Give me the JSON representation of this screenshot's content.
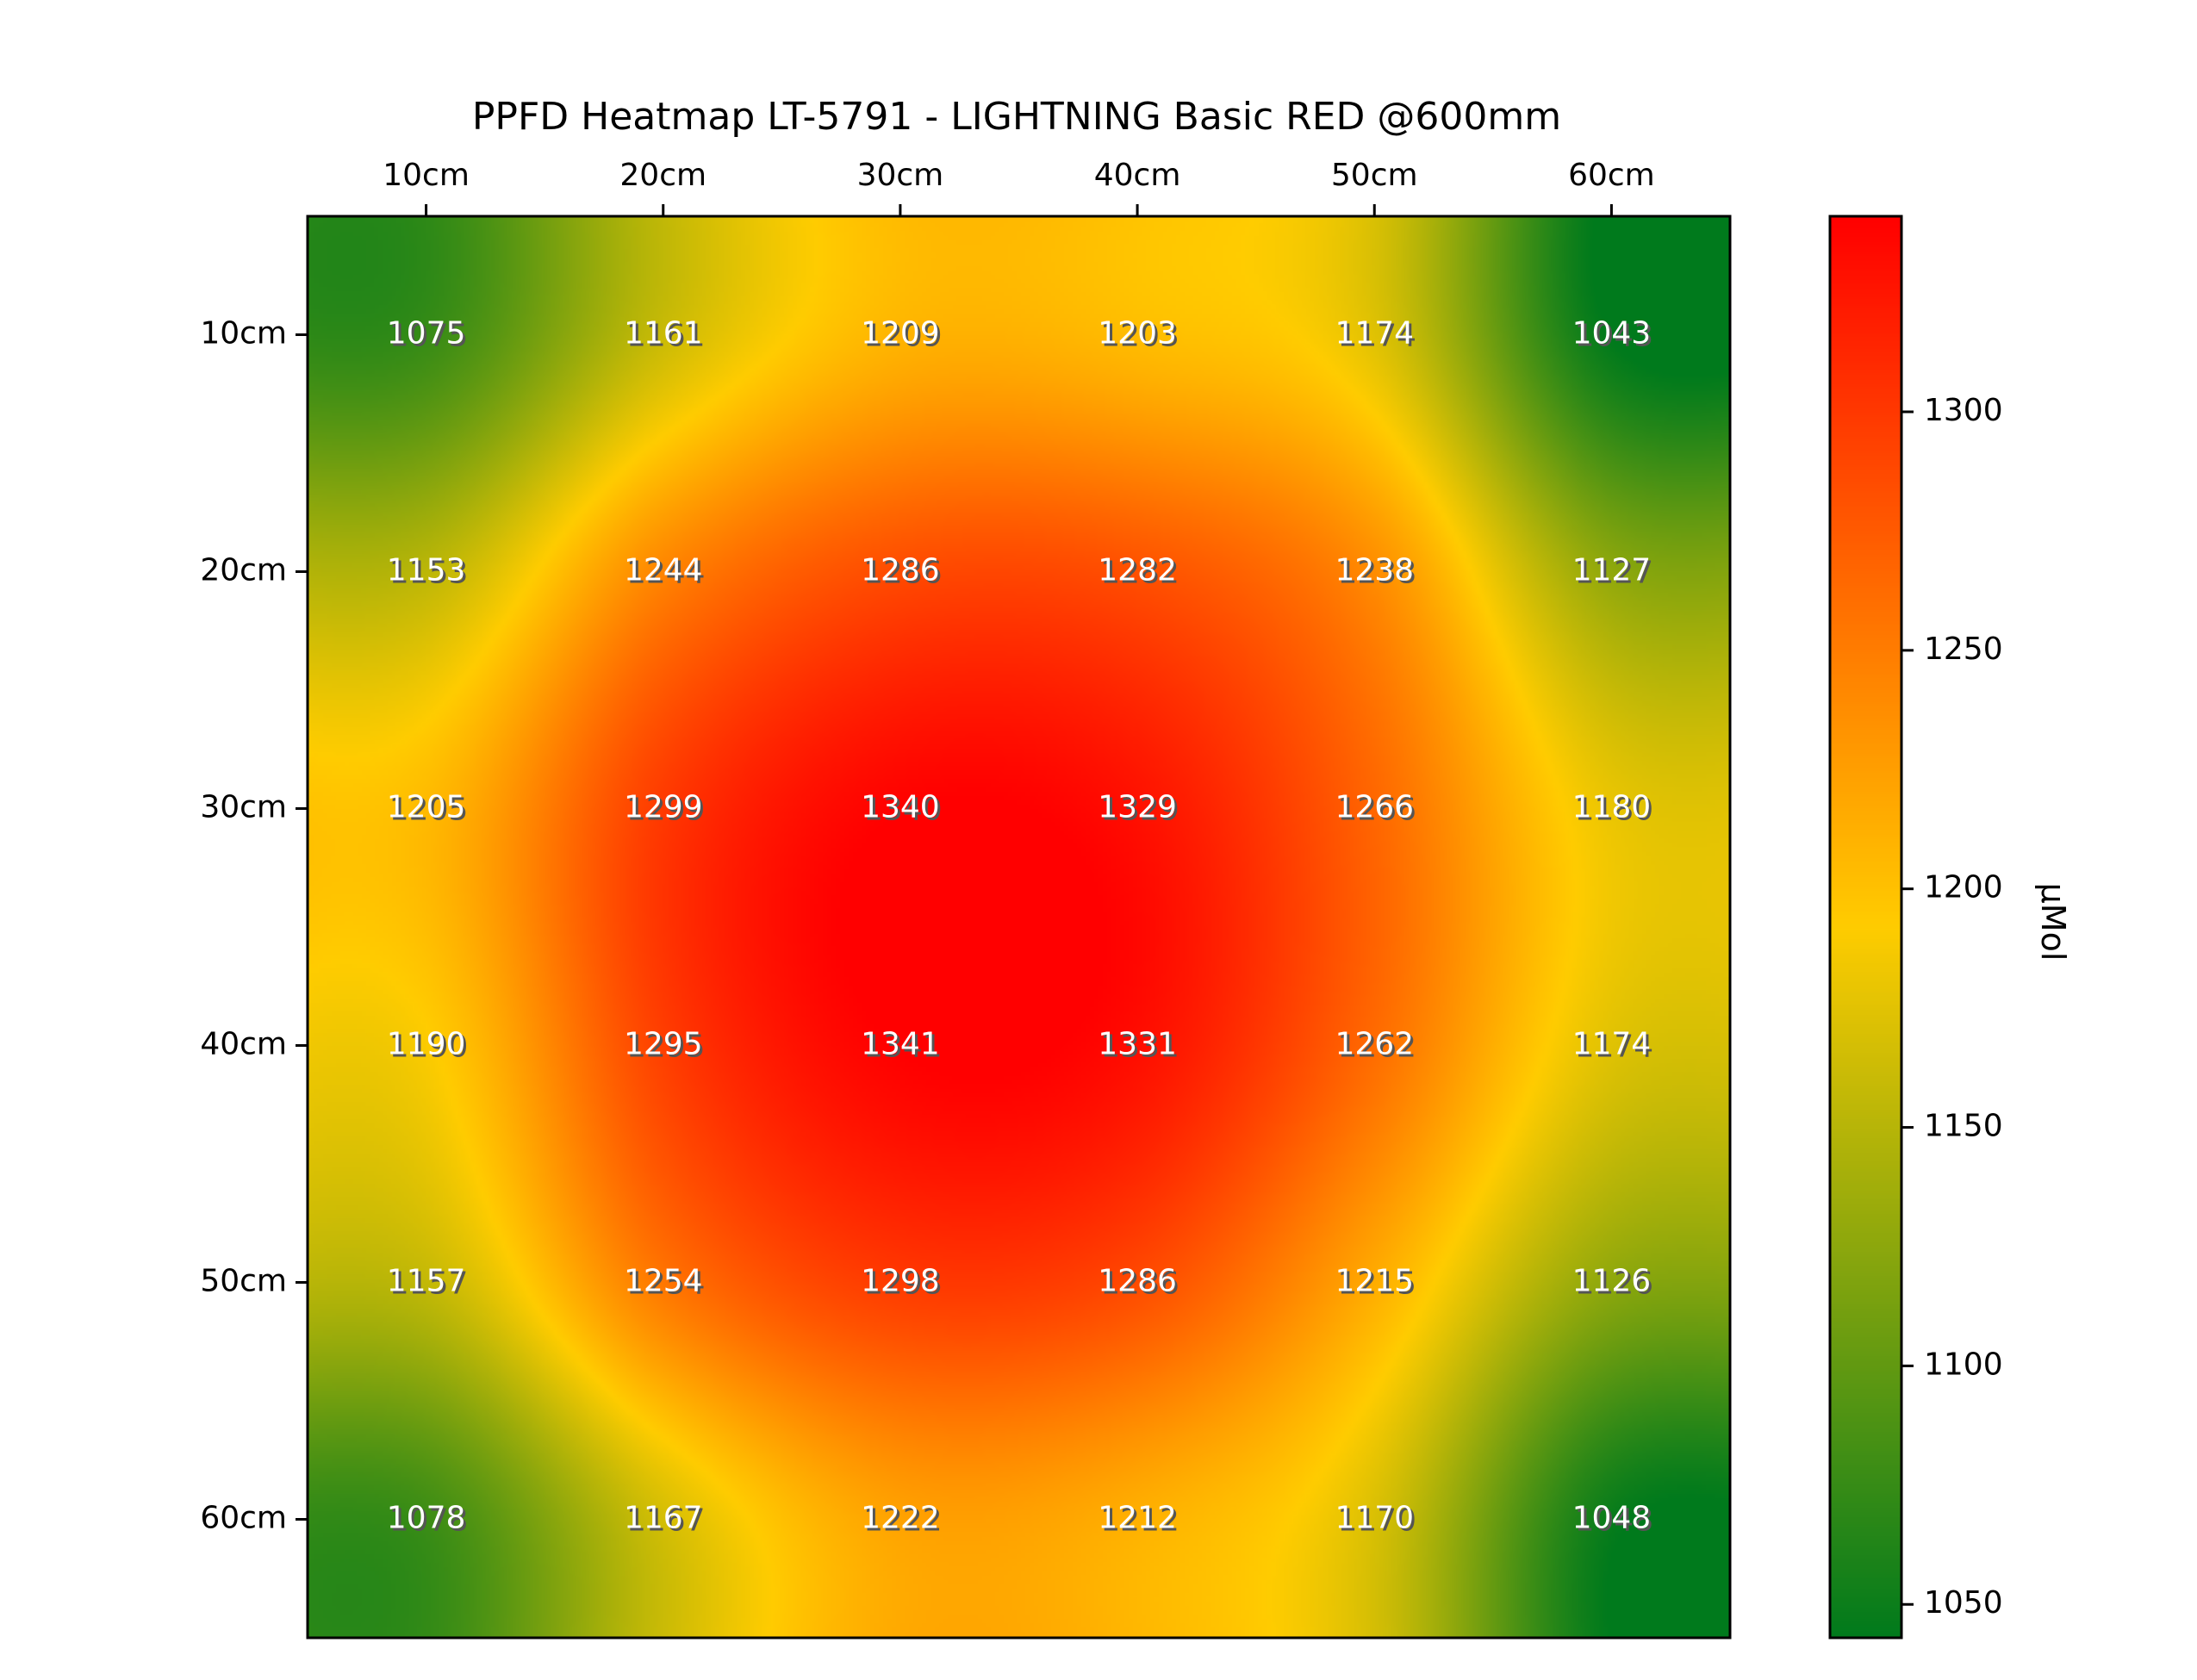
{
  "chart_data": {
    "type": "heatmap",
    "title": "PPFD Heatmap LT-5791 - LIGHTNING Basic RED @600mm",
    "x_tick_labels": [
      "10cm",
      "20cm",
      "30cm",
      "40cm",
      "50cm",
      "60cm"
    ],
    "y_tick_labels": [
      "10cm",
      "20cm",
      "30cm",
      "40cm",
      "50cm",
      "60cm"
    ],
    "x_axis_position": "top",
    "values": [
      [
        1075,
        1161,
        1209,
        1203,
        1174,
        1043
      ],
      [
        1153,
        1244,
        1286,
        1282,
        1238,
        1127
      ],
      [
        1205,
        1299,
        1340,
        1329,
        1266,
        1180
      ],
      [
        1190,
        1295,
        1341,
        1331,
        1262,
        1174
      ],
      [
        1157,
        1254,
        1298,
        1286,
        1215,
        1126
      ],
      [
        1078,
        1167,
        1222,
        1212,
        1170,
        1048
      ]
    ],
    "colorbar": {
      "label": "μMol",
      "min": 1043,
      "max": 1341,
      "ticks": [
        1050,
        1100,
        1150,
        1200,
        1250,
        1300
      ],
      "colors": [
        "#007a1c",
        "#ffcc00",
        "#ff0000"
      ]
    },
    "interpolation": "bicubic",
    "grid": false
  }
}
